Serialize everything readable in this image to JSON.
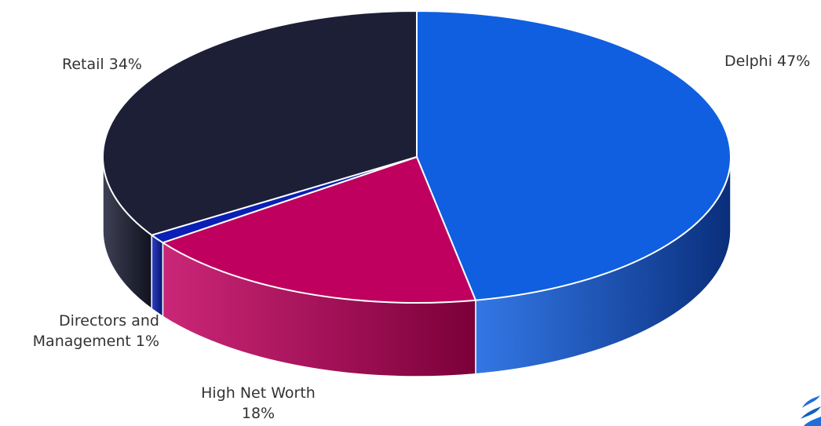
{
  "chart_data": {
    "type": "pie",
    "style": "3d",
    "slices": [
      {
        "label": "Delphi",
        "value": 47,
        "display": "Delphi 47%",
        "color": "#0F5FE0",
        "side_color": "#0A2E7A"
      },
      {
        "label": "High Net Worth",
        "value": 18,
        "display_line1": "High Net Worth",
        "display_line2": "18%",
        "color": "#C0005F",
        "side_color": "#7A0038"
      },
      {
        "label": "Directors and Management",
        "value": 1,
        "display_line1": "Directors and",
        "display_line2": "Management 1%",
        "color": "#0A1FB5",
        "side_color": "#061270"
      },
      {
        "label": "Retail",
        "value": 34,
        "display": "Retail  34%",
        "color": "#1C1F36",
        "side_color": "#10121F"
      }
    ]
  }
}
